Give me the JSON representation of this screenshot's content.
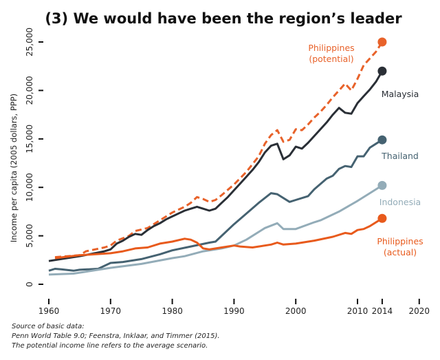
{
  "chart_data": {
    "type": "line",
    "title": "(3) We would have been the region’s leader",
    "ylabel": "Income per capita (2005 dollars, PPP)",
    "xlabel": "",
    "xlim": [
      1960,
      2020
    ],
    "ylim": [
      0,
      25000
    ],
    "xticks": [
      "1960",
      "1970",
      "1980",
      "1990",
      "2000",
      "2010",
      "2014",
      "2020"
    ],
    "yticks": [
      "0",
      "5,000",
      "10,000",
      "15,000",
      "20,000",
      "25,000"
    ],
    "grid": false,
    "legend": "direct labels at line ends",
    "series": [
      {
        "name": "Philippines (potential)",
        "label_lines": [
          "Philippines",
          "(potential)"
        ],
        "color": "#e8622a",
        "dashed": true,
        "x": [
          1961,
          1965,
          1966,
          1969,
          1970,
          1971,
          1973,
          1974,
          1976,
          1978,
          1980,
          1982,
          1983,
          1984,
          1985,
          1986,
          1987,
          1988,
          1990,
          1992,
          1994,
          1995,
          1996,
          1997,
          1998,
          1999,
          2000,
          2001,
          2002,
          2003,
          2004,
          2005,
          2006,
          2007,
          2008,
          2009,
          2010,
          2011,
          2012,
          2013,
          2014
        ],
        "y": [
          2800,
          3000,
          3400,
          3800,
          4000,
          4500,
          5000,
          5500,
          5800,
          6600,
          7400,
          8000,
          8400,
          9000,
          8800,
          8500,
          8700,
          9200,
          10300,
          11600,
          13200,
          14500,
          15400,
          15900,
          14700,
          14900,
          16000,
          15900,
          16500,
          17200,
          17800,
          18500,
          19300,
          20000,
          20700,
          20000,
          21200,
          22600,
          23300,
          24000,
          25000
        ]
      },
      {
        "name": "Malaysia",
        "label_lines": [
          "Malaysia"
        ],
        "color": "#2a2f36",
        "dashed": false,
        "x": [
          1960,
          1965,
          1969,
          1970,
          1971,
          1972,
          1973,
          1974,
          1975,
          1976,
          1977,
          1978,
          1979,
          1980,
          1981,
          1982,
          1983,
          1984,
          1985,
          1986,
          1987,
          1988,
          1989,
          1990,
          1991,
          1992,
          1993,
          1994,
          1995,
          1996,
          1997,
          1998,
          1999,
          2000,
          2001,
          2002,
          2003,
          2004,
          2005,
          2006,
          2007,
          2008,
          2009,
          2010,
          2011,
          2012,
          2013,
          2014
        ],
        "y": [
          2400,
          2900,
          3400,
          3600,
          4200,
          4500,
          4900,
          5200,
          5100,
          5600,
          6000,
          6300,
          6700,
          7000,
          7300,
          7600,
          7800,
          8000,
          7800,
          7600,
          7800,
          8400,
          9000,
          9700,
          10400,
          11100,
          11800,
          12600,
          13600,
          14300,
          14500,
          12900,
          13300,
          14200,
          14000,
          14600,
          15300,
          16000,
          16700,
          17500,
          18200,
          17700,
          17600,
          18700,
          19400,
          20100,
          20900,
          22000
        ]
      },
      {
        "name": "Thailand",
        "label_lines": [
          "Thailand"
        ],
        "color": "#456271",
        "dashed": false,
        "x": [
          1960,
          1961,
          1962,
          1964,
          1965,
          1968,
          1970,
          1972,
          1975,
          1978,
          1980,
          1983,
          1986,
          1987,
          1988,
          1990,
          1992,
          1994,
          1996,
          1997,
          1999,
          2000,
          2002,
          2003,
          2005,
          2006,
          2007,
          2008,
          2009,
          2010,
          2011,
          2012,
          2013,
          2014
        ],
        "y": [
          1400,
          1600,
          1550,
          1400,
          1500,
          1600,
          2200,
          2300,
          2600,
          3100,
          3500,
          3900,
          4300,
          4400,
          5000,
          6200,
          7300,
          8400,
          9400,
          9300,
          8500,
          8700,
          9100,
          9800,
          10900,
          11200,
          11900,
          12200,
          12100,
          13200,
          13200,
          14100,
          14500,
          14900
        ]
      },
      {
        "name": "Indonesia",
        "label_lines": [
          "Indonesia"
        ],
        "color": "#93acb8",
        "dashed": false,
        "x": [
          1960,
          1964,
          1968,
          1970,
          1975,
          1980,
          1982,
          1985,
          1988,
          1990,
          1992,
          1995,
          1997,
          1998,
          2000,
          2003,
          2004,
          2007,
          2010,
          2012,
          2014
        ],
        "y": [
          1000,
          1100,
          1500,
          1700,
          2100,
          2700,
          2900,
          3400,
          3700,
          4000,
          4600,
          5800,
          6300,
          5700,
          5700,
          6400,
          6600,
          7500,
          8600,
          9400,
          10200
        ]
      },
      {
        "name": "Philippines (actual)",
        "label_lines": [
          "Philippines",
          "(actual)"
        ],
        "color": "#e85a1c",
        "dashed": false,
        "x": [
          1961,
          1965,
          1970,
          1972,
          1974,
          1976,
          1978,
          1980,
          1982,
          1983,
          1984,
          1985,
          1986,
          1988,
          1990,
          1991,
          1993,
          1996,
          1997,
          1998,
          2000,
          2003,
          2006,
          2008,
          2009,
          2010,
          2011,
          2012,
          2014
        ],
        "y": [
          2700,
          3000,
          3200,
          3400,
          3700,
          3800,
          4200,
          4400,
          4700,
          4600,
          4300,
          3700,
          3600,
          3800,
          4000,
          3900,
          3800,
          4100,
          4300,
          4100,
          4200,
          4500,
          4900,
          5300,
          5200,
          5600,
          5700,
          6000,
          6800
        ]
      }
    ]
  },
  "notes": [
    "Source of basic data:",
    "Penn World Table 9.0; Feenstra, Inklaar, and Timmer (2015).",
    "The potential income line refers to the average scenario."
  ]
}
